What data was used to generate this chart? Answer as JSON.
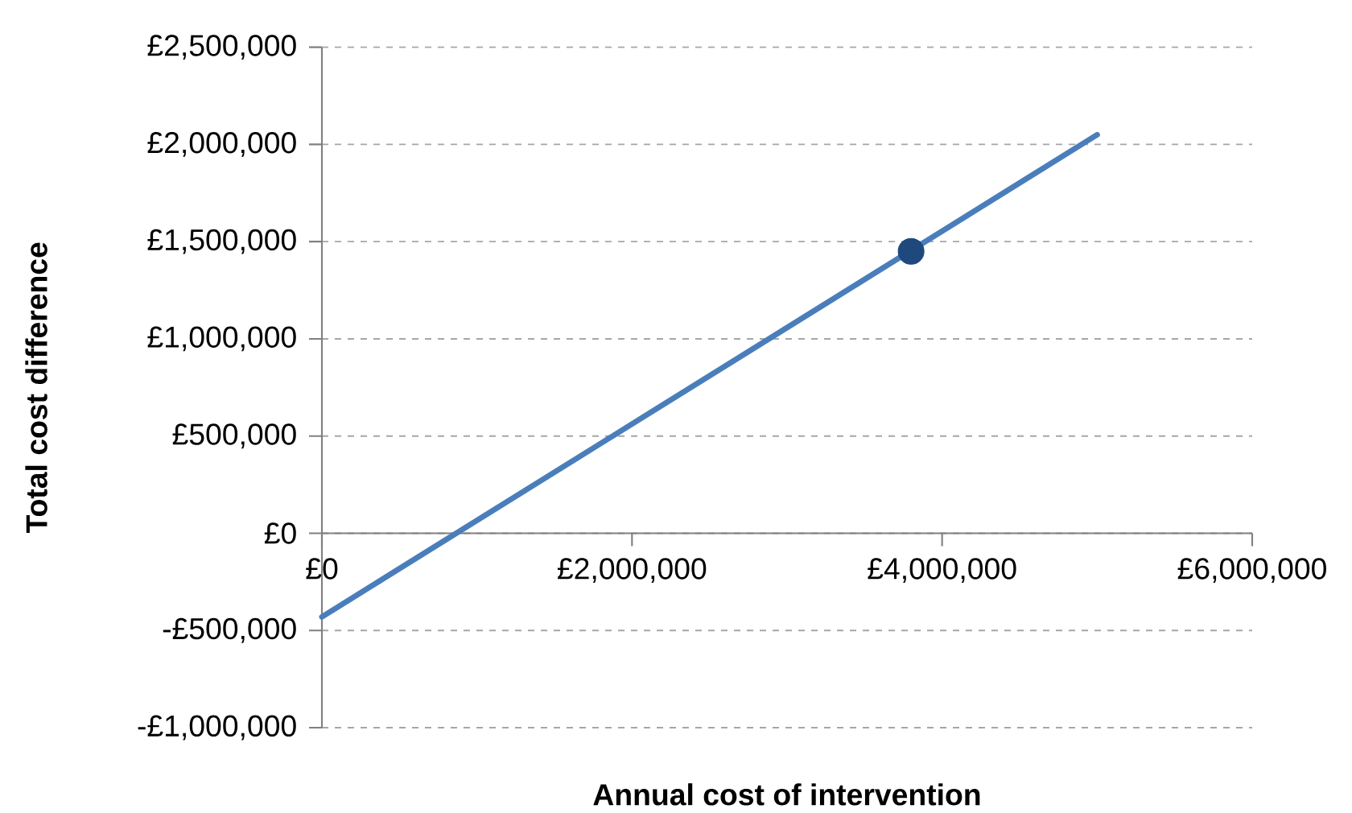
{
  "chart_data": {
    "type": "line",
    "xlabel": "Annual cost of intervention",
    "ylabel": "Total cost difference",
    "xlim": [
      0,
      6000000
    ],
    "ylim": [
      -1000000,
      2500000
    ],
    "xticks": [
      {
        "value": 0,
        "label": "£0"
      },
      {
        "value": 2000000,
        "label": "£2,000,000"
      },
      {
        "value": 4000000,
        "label": "£4,000,000"
      },
      {
        "value": 6000000,
        "label": "£6,000,000"
      }
    ],
    "yticks": [
      {
        "value": -1000000,
        "label": "-£1,000,000"
      },
      {
        "value": -500000,
        "label": "-£500,000"
      },
      {
        "value": 0,
        "label": "£0"
      },
      {
        "value": 500000,
        "label": "£500,000"
      },
      {
        "value": 1000000,
        "label": "£1,000,000"
      },
      {
        "value": 1500000,
        "label": "£1,500,000"
      },
      {
        "value": 2000000,
        "label": "£2,000,000"
      },
      {
        "value": 2500000,
        "label": "£2,500,000"
      }
    ],
    "grid": "y",
    "series": [
      {
        "color": "#4a7ebb",
        "x": [
          0,
          5000000
        ],
        "values": [
          -430000,
          2050000
        ]
      },
      {
        "type": "scatter",
        "marker": "circle",
        "color": "#1f497d",
        "x": [
          3800000
        ],
        "values": [
          1450000
        ]
      }
    ]
  }
}
